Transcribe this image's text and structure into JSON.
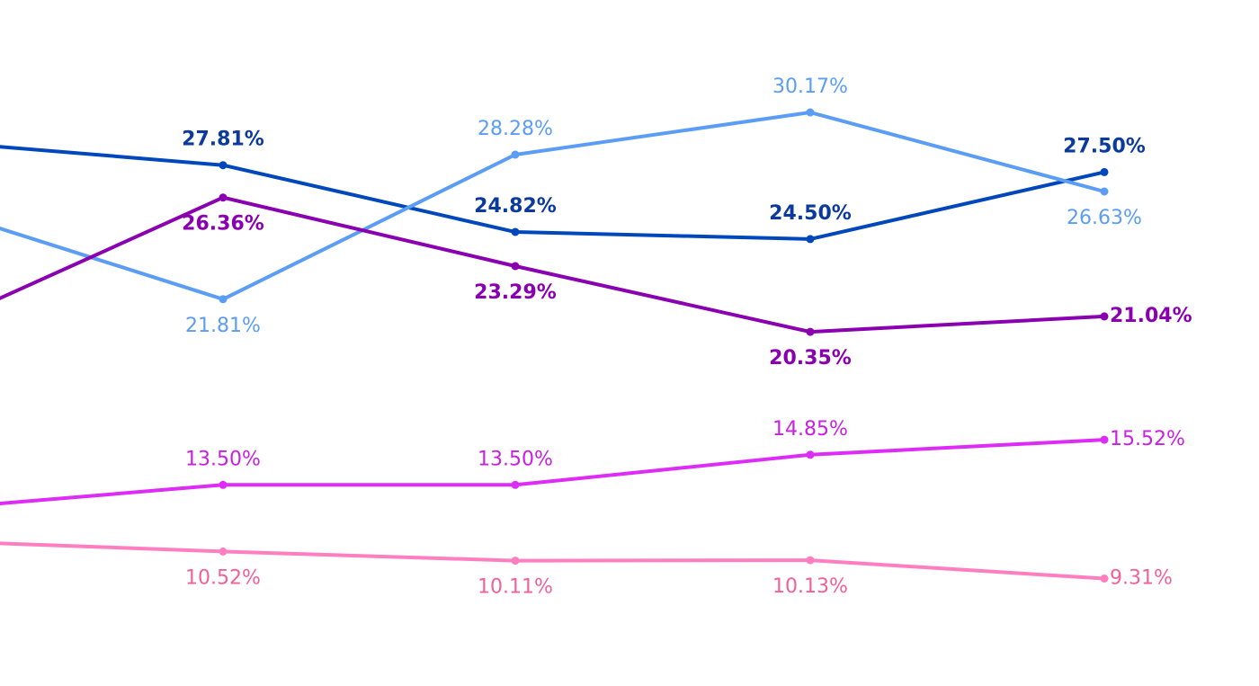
{
  "chart_data": {
    "type": "line",
    "ylim": [
      4.5,
      35.2
    ],
    "grid": false,
    "legend": "none",
    "series": [
      {
        "key": "dark-blue",
        "color": "#0047BB",
        "text_color": "#0B3A9C",
        "bold": true,
        "values": [
          28.9,
          27.81,
          24.82,
          24.5,
          27.5
        ],
        "labels": [
          "",
          "27.81%",
          "24.82%",
          "24.50%",
          "27.50%"
        ],
        "label_pos": [
          "above",
          "above",
          "above",
          "above",
          "above"
        ]
      },
      {
        "key": "light-blue",
        "color": "#5B9DF5",
        "text_color": "#5B9DF5",
        "bold": false,
        "values": [
          26.0,
          21.81,
          28.28,
          30.17,
          26.63
        ],
        "labels": [
          "",
          "21.81%",
          "28.28%",
          "30.17%",
          "26.63%"
        ],
        "label_pos": [
          "below",
          "below",
          "above",
          "above",
          "below"
        ]
      },
      {
        "key": "purple",
        "color": "#8A00B0",
        "text_color": "#8A00B0",
        "bold": true,
        "values": [
          20.4,
          26.36,
          23.29,
          20.35,
          21.04
        ],
        "labels": [
          "",
          "26.36%",
          "23.29%",
          "20.35%",
          "21.04%"
        ],
        "label_pos": [
          "below",
          "below",
          "below",
          "below",
          "right"
        ]
      },
      {
        "key": "magenta",
        "color": "#DD2CF5",
        "text_color": "#C820E0",
        "bold": false,
        "values": [
          12.4,
          13.5,
          13.5,
          14.85,
          15.52
        ],
        "labels": [
          "",
          "13.50%",
          "13.50%",
          "14.85%",
          "15.52%"
        ],
        "label_pos": [
          "above",
          "above",
          "above",
          "above",
          "right"
        ]
      },
      {
        "key": "pink",
        "color": "#FF7EC0",
        "text_color": "#F0609A",
        "bold": false,
        "values": [
          11.0,
          10.52,
          10.11,
          10.13,
          9.31
        ],
        "labels": [
          "",
          "10.52%",
          "10.11%",
          "10.13%",
          "9.31%"
        ],
        "label_pos": [
          "below",
          "below",
          "below",
          "below",
          "right"
        ]
      }
    ]
  }
}
